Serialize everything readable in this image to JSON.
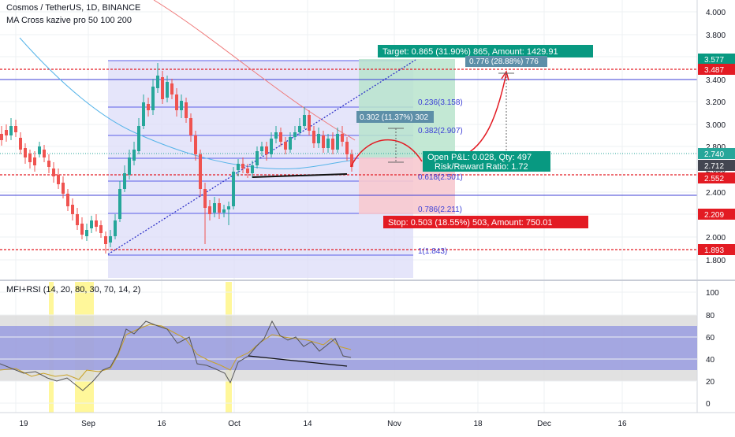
{
  "chart_header": {
    "symbol": "Cosmos / TetherUS, 1D, BINANCE",
    "indicator": "MA Cross kazive pro 50 100 200"
  },
  "oscillator": {
    "label": "MFI+RSI (14, 20, 80, 30, 70, 14, 2)",
    "axis_ticks": [
      "100",
      "80",
      "60",
      "40",
      "20",
      "0"
    ]
  },
  "price_axis": {
    "ticks": [
      "4.000",
      "3.800",
      "3.600",
      "3.400",
      "3.200",
      "3.000",
      "2.800",
      "2.600",
      "2.400",
      "2.200",
      "2.000",
      "1.800"
    ],
    "badges": [
      {
        "text": "3.577",
        "color": "#089981"
      },
      {
        "text": "3.487",
        "color": "#e31b23"
      },
      {
        "text": "2.740",
        "color": "#26a69a"
      },
      {
        "text": "2.712",
        "color": "#434651"
      },
      {
        "text": "2.552",
        "color": "#e31b23"
      },
      {
        "text": "2.209",
        "color": "#e31b23"
      },
      {
        "text": "1.893",
        "color": "#e31b23"
      }
    ]
  },
  "time_axis": {
    "labels": [
      "19",
      "Sep",
      "16",
      "Oct",
      "14",
      "Nov",
      "18",
      "Dec",
      "16"
    ]
  },
  "fib_labels": [
    "0.236(3.158)",
    "0.382(2.907)",
    "0.618(2.501)",
    "0.786(2.211)",
    "1(1.843)"
  ],
  "callouts": {
    "target": "Target: 0.865 (31.90%) 865, Amount: 1429.91",
    "stop": "Stop: 0.503 (18.55%) 503, Amount: 750.01",
    "open_pl": "Open P&L: 0.028, Qty: 497",
    "risk_reward": "Risk/Reward Ratio: 1.72",
    "measure_1": "0.302 (11.37%) 302",
    "measure_2": "0.776 (28.88%) 776"
  },
  "colors": {
    "up": "#26a69a",
    "down": "#ef5350",
    "fib_zone": "#dcdcf8",
    "profit_zone": "#b9e4cc",
    "loss_zone": "#f7c9cf",
    "dashed_red": "#e31b23"
  }
}
